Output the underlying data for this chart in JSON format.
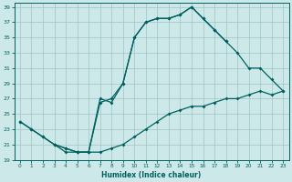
{
  "xlabel": "Humidex (Indice chaleur)",
  "background_color": "#cde8e8",
  "grid_color": "#a0c4c4",
  "line_color": "#006060",
  "xlim": [
    -0.5,
    23.5
  ],
  "ylim": [
    19,
    39.5
  ],
  "xticks": [
    0,
    1,
    2,
    3,
    4,
    5,
    6,
    7,
    8,
    9,
    10,
    11,
    12,
    13,
    14,
    15,
    16,
    17,
    18,
    19,
    20,
    21,
    22,
    23
  ],
  "yticks": [
    19,
    21,
    23,
    25,
    27,
    29,
    31,
    33,
    35,
    37,
    39
  ],
  "line1_x": [
    0,
    1,
    2,
    3,
    4,
    5,
    6,
    7,
    8,
    9,
    10,
    11,
    12,
    13,
    14,
    15,
    16,
    17,
    18
  ],
  "line1_y": [
    24,
    23,
    22,
    21,
    20,
    20,
    20,
    27,
    26.5,
    29,
    35,
    37,
    37.5,
    37.5,
    38,
    39,
    37.5,
    36,
    34.5
  ],
  "line2_x": [
    0,
    1,
    2,
    3,
    4,
    5,
    6,
    7,
    8,
    9,
    10,
    11,
    12,
    13,
    14,
    15,
    16,
    17,
    18,
    19,
    20,
    21,
    22,
    23
  ],
  "line2_y": [
    24,
    23,
    22,
    21,
    20.5,
    20,
    20,
    20,
    20.5,
    21,
    22,
    23,
    24,
    25,
    25.5,
    26,
    26,
    26.5,
    27,
    27,
    27.5,
    28,
    27.5,
    28
  ],
  "line3_x": [
    3,
    4,
    5,
    6,
    7,
    8,
    9,
    10,
    11,
    12,
    13,
    14,
    15,
    16,
    17,
    18,
    19,
    20,
    21,
    22,
    23
  ],
  "line3_y": [
    21,
    20.5,
    20,
    20,
    26.5,
    27,
    29,
    35,
    37,
    37.5,
    37.5,
    38,
    39,
    37.5,
    36,
    34.5,
    33,
    31,
    31,
    29.5,
    28
  ]
}
